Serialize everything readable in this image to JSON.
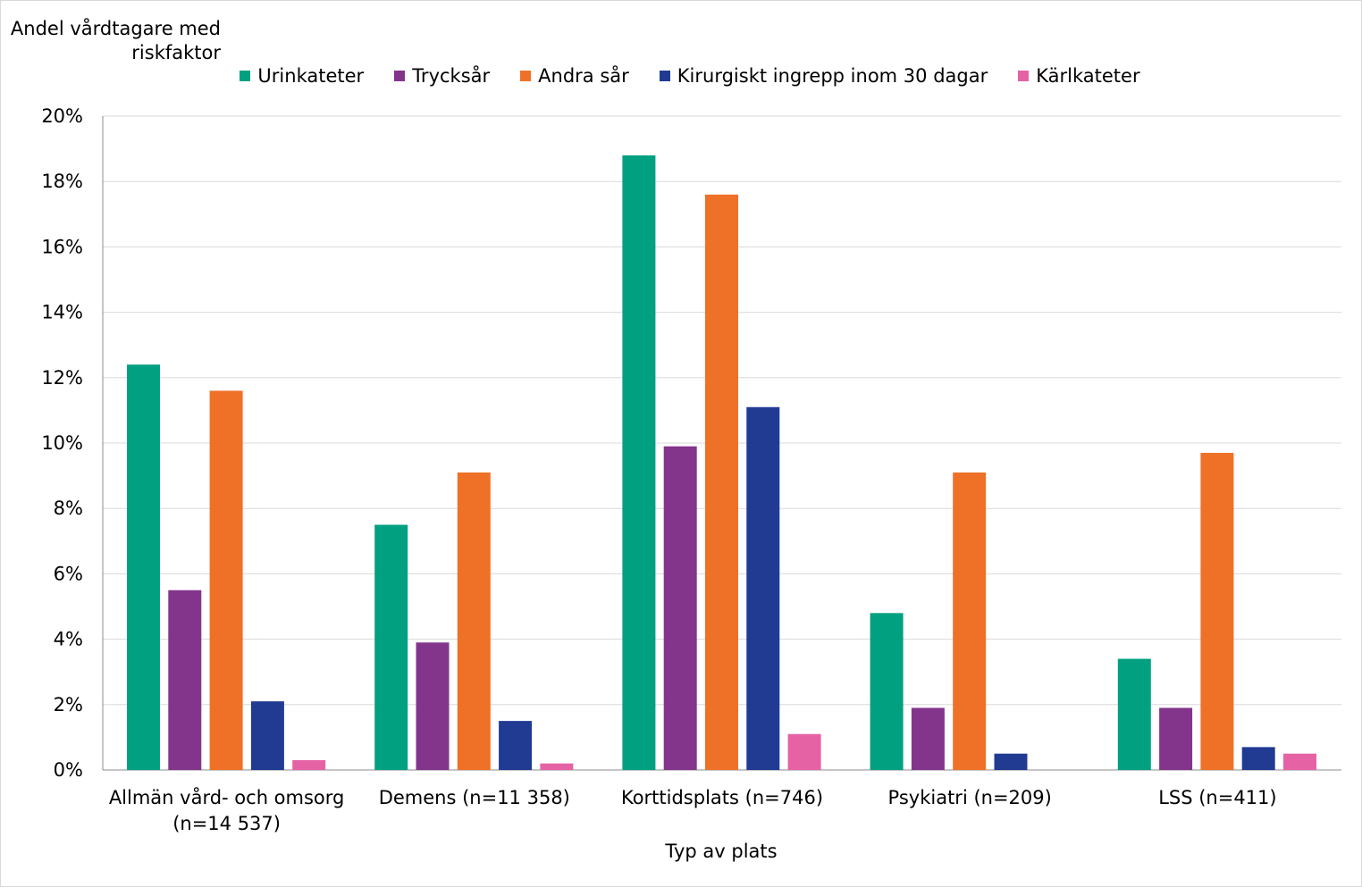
{
  "chart_data": {
    "type": "bar",
    "ylabel": "Andel vårdtagare med riskfaktor",
    "xlabel": "Typ av plats",
    "ylim": [
      0,
      20
    ],
    "yticks": [
      "0%",
      "2%",
      "4%",
      "6%",
      "8%",
      "10%",
      "12%",
      "14%",
      "16%",
      "18%",
      "20%"
    ],
    "categories": [
      [
        "Allmän vård- och omsorg",
        "(n=14 537)"
      ],
      [
        "Demens (n=11 358)"
      ],
      [
        "Korttidsplats (n=746)"
      ],
      [
        "Psykiatri (n=209)"
      ],
      [
        "LSS (n=411)"
      ]
    ],
    "series": [
      {
        "name": "Urinkateter",
        "color": "#00a080",
        "values": [
          12.4,
          7.5,
          18.8,
          4.8,
          3.4
        ]
      },
      {
        "name": "Trycksår",
        "color": "#83358c",
        "values": [
          5.5,
          3.9,
          9.9,
          1.9,
          1.9
        ]
      },
      {
        "name": "Andra sår",
        "color": "#ee7127",
        "values": [
          11.6,
          9.1,
          17.6,
          9.1,
          9.7
        ]
      },
      {
        "name": "Kirurgiskt ingrepp inom 30 dagar",
        "color": "#213b93",
        "values": [
          2.1,
          1.5,
          11.1,
          0.5,
          0.7
        ]
      },
      {
        "name": "Kärlkateter",
        "color": "#e563a4",
        "values": [
          0.3,
          0.2,
          1.1,
          0.0,
          0.5
        ]
      }
    ],
    "grid": true,
    "legend_position": "top"
  }
}
